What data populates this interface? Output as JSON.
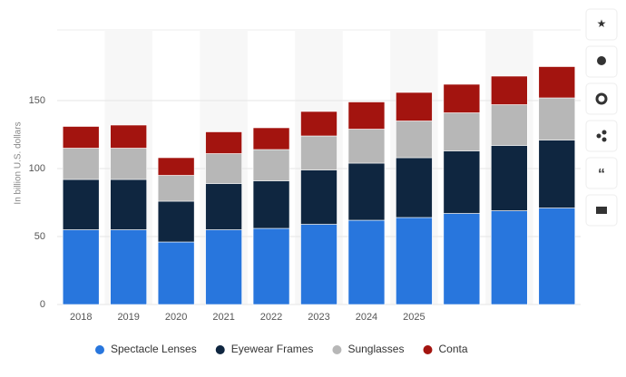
{
  "chart_data": {
    "type": "stacked-bar",
    "y_label": "In billion U.S. dollars",
    "categories": [
      "2018",
      "2019",
      "2020",
      "2021",
      "2022",
      "2023",
      "2024",
      "2025",
      null,
      null,
      null
    ],
    "series": [
      {
        "name": "Spectacle Lenses",
        "color": "#2876dd",
        "values": [
          55,
          55,
          46,
          55,
          56,
          59,
          62,
          64,
          67,
          69,
          71
        ]
      },
      {
        "name": "Eyewear Frames",
        "color": "#0f2640",
        "values": [
          37,
          37,
          30,
          34,
          35,
          40,
          42,
          44,
          46,
          48,
          50
        ]
      },
      {
        "name": "Sunglasses",
        "color": "#b7b7b7",
        "values": [
          23,
          23,
          19,
          22,
          23,
          25,
          25,
          27,
          28,
          30,
          31
        ]
      },
      {
        "name": "Conta",
        "color": "#a3140f",
        "values": [
          16,
          17,
          13,
          16,
          16,
          18,
          20,
          21,
          21,
          21,
          23
        ]
      }
    ],
    "ylim": [
      0,
      200
    ],
    "yticks": [
      0,
      50,
      100,
      150
    ],
    "grid": true
  }
}
